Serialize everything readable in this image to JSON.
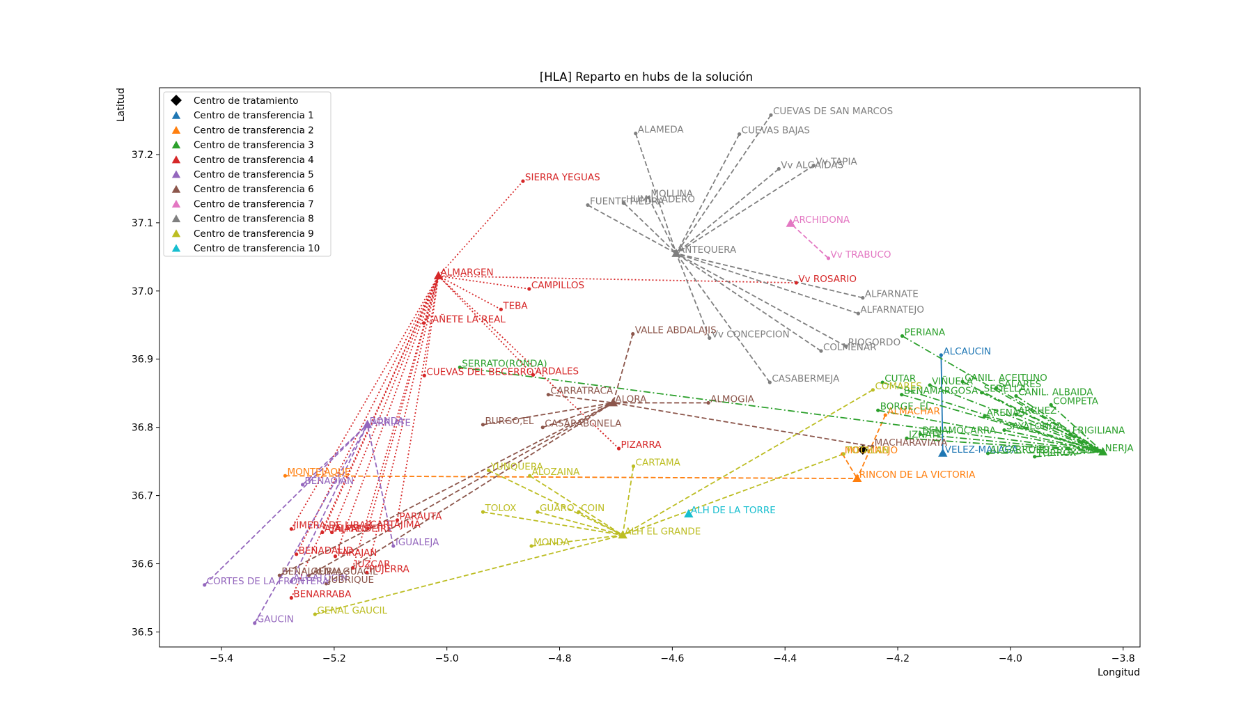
{
  "chart_data": {
    "type": "scatter",
    "title": "[HLA] Reparto en hubs de la solución",
    "xlabel": "Longitud",
    "ylabel": "Latitud",
    "xlim": [
      -5.51,
      -3.77
    ],
    "ylim": [
      36.478,
      37.298
    ],
    "xticks": [
      -5.4,
      -5.2,
      -5.0,
      -4.8,
      -4.6,
      -4.4,
      -4.2,
      -4.0,
      -3.8
    ],
    "xtick_labels": [
      "−5.4",
      "−5.2",
      "−5.0",
      "−4.8",
      "−4.6",
      "−4.4",
      "−4.2",
      "−4.0",
      "−3.8"
    ],
    "yticks": [
      36.5,
      36.6,
      36.7,
      36.8,
      36.9,
      37.0,
      37.1,
      37.2
    ],
    "ytick_labels": [
      "36.5",
      "36.6",
      "36.7",
      "36.8",
      "36.9",
      "37.0",
      "37.1",
      "37.2"
    ],
    "legend_position": "top-left",
    "grid": false,
    "treatment_center": {
      "name": "Centro de tratamiento",
      "color": "#000000",
      "x": -4.262,
      "y": 36.767
    },
    "series": [
      {
        "name": "Centro de transferencia 1",
        "color": "#1f77b4",
        "dash": "solid",
        "hub": {
          "label": "VELEZ-MALAGA",
          "x": -4.12,
          "y": 36.762
        },
        "points": [
          {
            "label": "ALCAUCIN",
            "x": -4.123,
            "y": 36.906
          }
        ]
      },
      {
        "name": "Centro de transferencia 2",
        "color": "#ff7f0e",
        "dash": "dashed",
        "hub": {
          "label": "RINCON DE LA VICTORIA",
          "x": -4.272,
          "y": 36.725
        },
        "points": [
          {
            "label": "MONTEJAQUE",
            "x": -5.287,
            "y": 36.729
          },
          {
            "label": "ALMACHAR",
            "x": -4.222,
            "y": 36.818
          },
          {
            "label": "MOCLINEJO",
            "x": -4.298,
            "y": 36.761
          }
        ]
      },
      {
        "name": "Centro de transferencia 3",
        "color": "#2ca02c",
        "dash": "dashdot",
        "hub": {
          "label": "NERJA",
          "x": -3.836,
          "y": 36.764
        },
        "points": [
          {
            "label": "SERRATO(RONDA)",
            "x": -4.977,
            "y": 36.888
          },
          {
            "label": "PERIANA",
            "x": -4.192,
            "y": 36.934
          },
          {
            "label": "CUTAR",
            "x": -4.227,
            "y": 36.866
          },
          {
            "label": "BORGE, EL",
            "x": -4.235,
            "y": 36.825
          },
          {
            "label": "BENAMARGOSA",
            "x": -4.193,
            "y": 36.848
          },
          {
            "label": "VIÑUELA",
            "x": -4.143,
            "y": 36.862
          },
          {
            "label": "CANIL. ACEITUNO",
            "x": -4.085,
            "y": 36.867
          },
          {
            "label": "SALARES",
            "x": -4.025,
            "y": 36.858
          },
          {
            "label": "SEDELLA",
            "x": -4.051,
            "y": 36.851
          },
          {
            "label": "CANIL. ALBAIDA",
            "x": -3.99,
            "y": 36.846
          },
          {
            "label": "COMPETA",
            "x": -3.928,
            "y": 36.833
          },
          {
            "label": "ARCHEZ",
            "x": -3.99,
            "y": 36.819
          },
          {
            "label": "ARENAS",
            "x": -4.046,
            "y": 36.816
          },
          {
            "label": "FRIGILIANA",
            "x": -3.894,
            "y": 36.79
          },
          {
            "label": "SAYALONGA",
            "x": -4.011,
            "y": 36.796
          },
          {
            "label": "BENAMOCARRA",
            "x": -4.16,
            "y": 36.79
          },
          {
            "label": "IZNATE",
            "x": -4.184,
            "y": 36.784
          },
          {
            "label": "ALGARROBO",
            "x": -4.04,
            "y": 36.762
          },
          {
            "label": "TORROX",
            "x": -3.957,
            "y": 36.757
          }
        ]
      },
      {
        "name": "Centro de transferencia 4",
        "color": "#d62728",
        "dash": "dotted",
        "hub": {
          "label": "ALMARGEN",
          "x": -5.015,
          "y": 37.022
        },
        "points": [
          {
            "label": "SIERRA YEGUAS",
            "x": -4.865,
            "y": 37.161
          },
          {
            "label": "CAMPILLOS",
            "x": -4.854,
            "y": 37.003
          },
          {
            "label": "TEBA",
            "x": -4.904,
            "y": 36.973
          },
          {
            "label": "CAÑETE LA REAL",
            "x": -5.041,
            "y": 36.953
          },
          {
            "label": "ARDALES",
            "x": -4.847,
            "y": 36.877
          },
          {
            "label": "CUEVAS DEL BECERRO",
            "x": -5.04,
            "y": 36.876
          },
          {
            "label": "Vv ROSARIO",
            "x": -4.38,
            "y": 37.012
          },
          {
            "label": "PIZARRA",
            "x": -4.695,
            "y": 36.769
          },
          {
            "label": "PARAUTA",
            "x": -5.088,
            "y": 36.664
          },
          {
            "label": "CARTAJIMA",
            "x": -5.14,
            "y": 36.652
          },
          {
            "label": "ATAJATE",
            "x": -5.221,
            "y": 36.646
          },
          {
            "label": "ALPANDEIRE",
            "x": -5.204,
            "y": 36.646
          },
          {
            "label": "JIMERA DE LIBAR",
            "x": -5.276,
            "y": 36.651
          },
          {
            "label": "BENADALID",
            "x": -5.267,
            "y": 36.614
          },
          {
            "label": "FARAJAN",
            "x": -5.198,
            "y": 36.611
          },
          {
            "label": "JUZCAR",
            "x": -5.167,
            "y": 36.594
          },
          {
            "label": "PUJERRA",
            "x": -5.142,
            "y": 36.587
          },
          {
            "label": "BENARRABA",
            "x": -5.276,
            "y": 36.55
          }
        ]
      },
      {
        "name": "Centro de transferencia 5",
        "color": "#9467bd",
        "dash": "dashed",
        "hub": {
          "label": "RONDA",
          "x": -5.141,
          "y": 36.804
        },
        "points": [
          {
            "label": "ARRIATE",
            "x": -5.138,
            "y": 36.801
          },
          {
            "label": "BENAOJAN",
            "x": -5.256,
            "y": 36.716
          },
          {
            "label": "IGUALEJA",
            "x": -5.095,
            "y": 36.626
          },
          {
            "label": "CORTES DE LA FRONTERA",
            "x": -5.43,
            "y": 36.569
          },
          {
            "label": "GAUCIN",
            "x": -5.341,
            "y": 36.513
          },
          {
            "label": "ALGATOCIN",
            "x": -5.276,
            "y": 36.574
          }
        ]
      },
      {
        "name": "Centro de transferencia 6",
        "color": "#8c564b",
        "dash": "dashed",
        "hub": {
          "label": "ALORA",
          "x": -4.705,
          "y": 36.836
        },
        "points": [
          {
            "label": "VALLE ABDALAJIS",
            "x": -4.67,
            "y": 36.937
          },
          {
            "label": "CARRATRACA",
            "x": -4.82,
            "y": 36.848
          },
          {
            "label": "ALMOGIA",
            "x": -4.536,
            "y": 36.836
          },
          {
            "label": "BURGO,EL",
            "x": -4.936,
            "y": 36.804
          },
          {
            "label": "CASARABONELA",
            "x": -4.83,
            "y": 36.8
          },
          {
            "label": "MACHARAVIAYA",
            "x": -4.245,
            "y": 36.772
          },
          {
            "label": "BENALAURIA",
            "x": -5.297,
            "y": 36.583
          },
          {
            "label": "GENALGUACIL",
            "x": -5.245,
            "y": 36.583
          },
          {
            "label": "JUBRIQUE",
            "x": -5.214,
            "y": 36.571
          }
        ]
      },
      {
        "name": "Centro de transferencia 7",
        "color": "#e377c2",
        "dash": "dashed",
        "hub": {
          "label": "ARCHIDONA",
          "x": -4.39,
          "y": 37.099
        },
        "points": [
          {
            "label": "Vv TRABUCO",
            "x": -4.323,
            "y": 37.048
          }
        ]
      },
      {
        "name": "Centro de transferencia 8",
        "color": "#7f7f7f",
        "dash": "dashed",
        "hub": {
          "label": "ANTEQUERA",
          "x": -4.593,
          "y": 37.055
        },
        "points": [
          {
            "label": "CUEVAS DE SAN MARCOS",
            "x": -4.425,
            "y": 37.258
          },
          {
            "label": "ALAMEDA",
            "x": -4.665,
            "y": 37.231
          },
          {
            "label": "CUEVAS BAJAS",
            "x": -4.481,
            "y": 37.23
          },
          {
            "label": "Vv ALGAIDAS",
            "x": -4.411,
            "y": 37.179
          },
          {
            "label": "Vv TAPIA",
            "x": -4.349,
            "y": 37.184
          },
          {
            "label": "MOLLINA",
            "x": -4.642,
            "y": 37.137
          },
          {
            "label": "HUMILLADERO",
            "x": -4.686,
            "y": 37.129
          },
          {
            "label": "FUENTE PIEDRA",
            "x": -4.75,
            "y": 37.126
          },
          {
            "label": "ALFARNATE",
            "x": -4.262,
            "y": 36.99
          },
          {
            "label": "ALFARNATEJO",
            "x": -4.27,
            "y": 36.967
          },
          {
            "label": "RIOGORDO",
            "x": -4.292,
            "y": 36.919
          },
          {
            "label": "COLMENAR",
            "x": -4.336,
            "y": 36.912
          },
          {
            "label": "Vv CONCEPCION",
            "x": -4.534,
            "y": 36.931
          },
          {
            "label": "CASABERMEJA",
            "x": -4.427,
            "y": 36.866
          }
        ]
      },
      {
        "name": "Centro de transferencia 9",
        "color": "#bcbd22",
        "dash": "dashed",
        "hub": {
          "label": "ALH EL GRANDE",
          "x": -4.688,
          "y": 36.642
        },
        "points": [
          {
            "label": "COMARES",
            "x": -4.244,
            "y": 36.855
          },
          {
            "label": "TOTALAN",
            "x": -4.296,
            "y": 36.761
          },
          {
            "label": "YUNQUERA",
            "x": -4.926,
            "y": 36.737
          },
          {
            "label": "ALOZAINA",
            "x": -4.853,
            "y": 36.729
          },
          {
            "label": "CARTAMA",
            "x": -4.669,
            "y": 36.743
          },
          {
            "label": "TOLOX",
            "x": -4.936,
            "y": 36.676
          },
          {
            "label": "GUARO",
            "x": -4.839,
            "y": 36.676
          },
          {
            "label": "COIN",
            "x": -4.766,
            "y": 36.676
          },
          {
            "label": "MONDA",
            "x": -4.85,
            "y": 36.626
          },
          {
            "label": "GENAL GAUCIL",
            "x": -5.234,
            "y": 36.526
          }
        ]
      },
      {
        "name": "Centro de transferencia 10",
        "color": "#17becf",
        "dash": "solid",
        "hub": {
          "label": "ALH DE LA TORRE",
          "x": -4.571,
          "y": 36.673
        },
        "points": []
      }
    ]
  }
}
